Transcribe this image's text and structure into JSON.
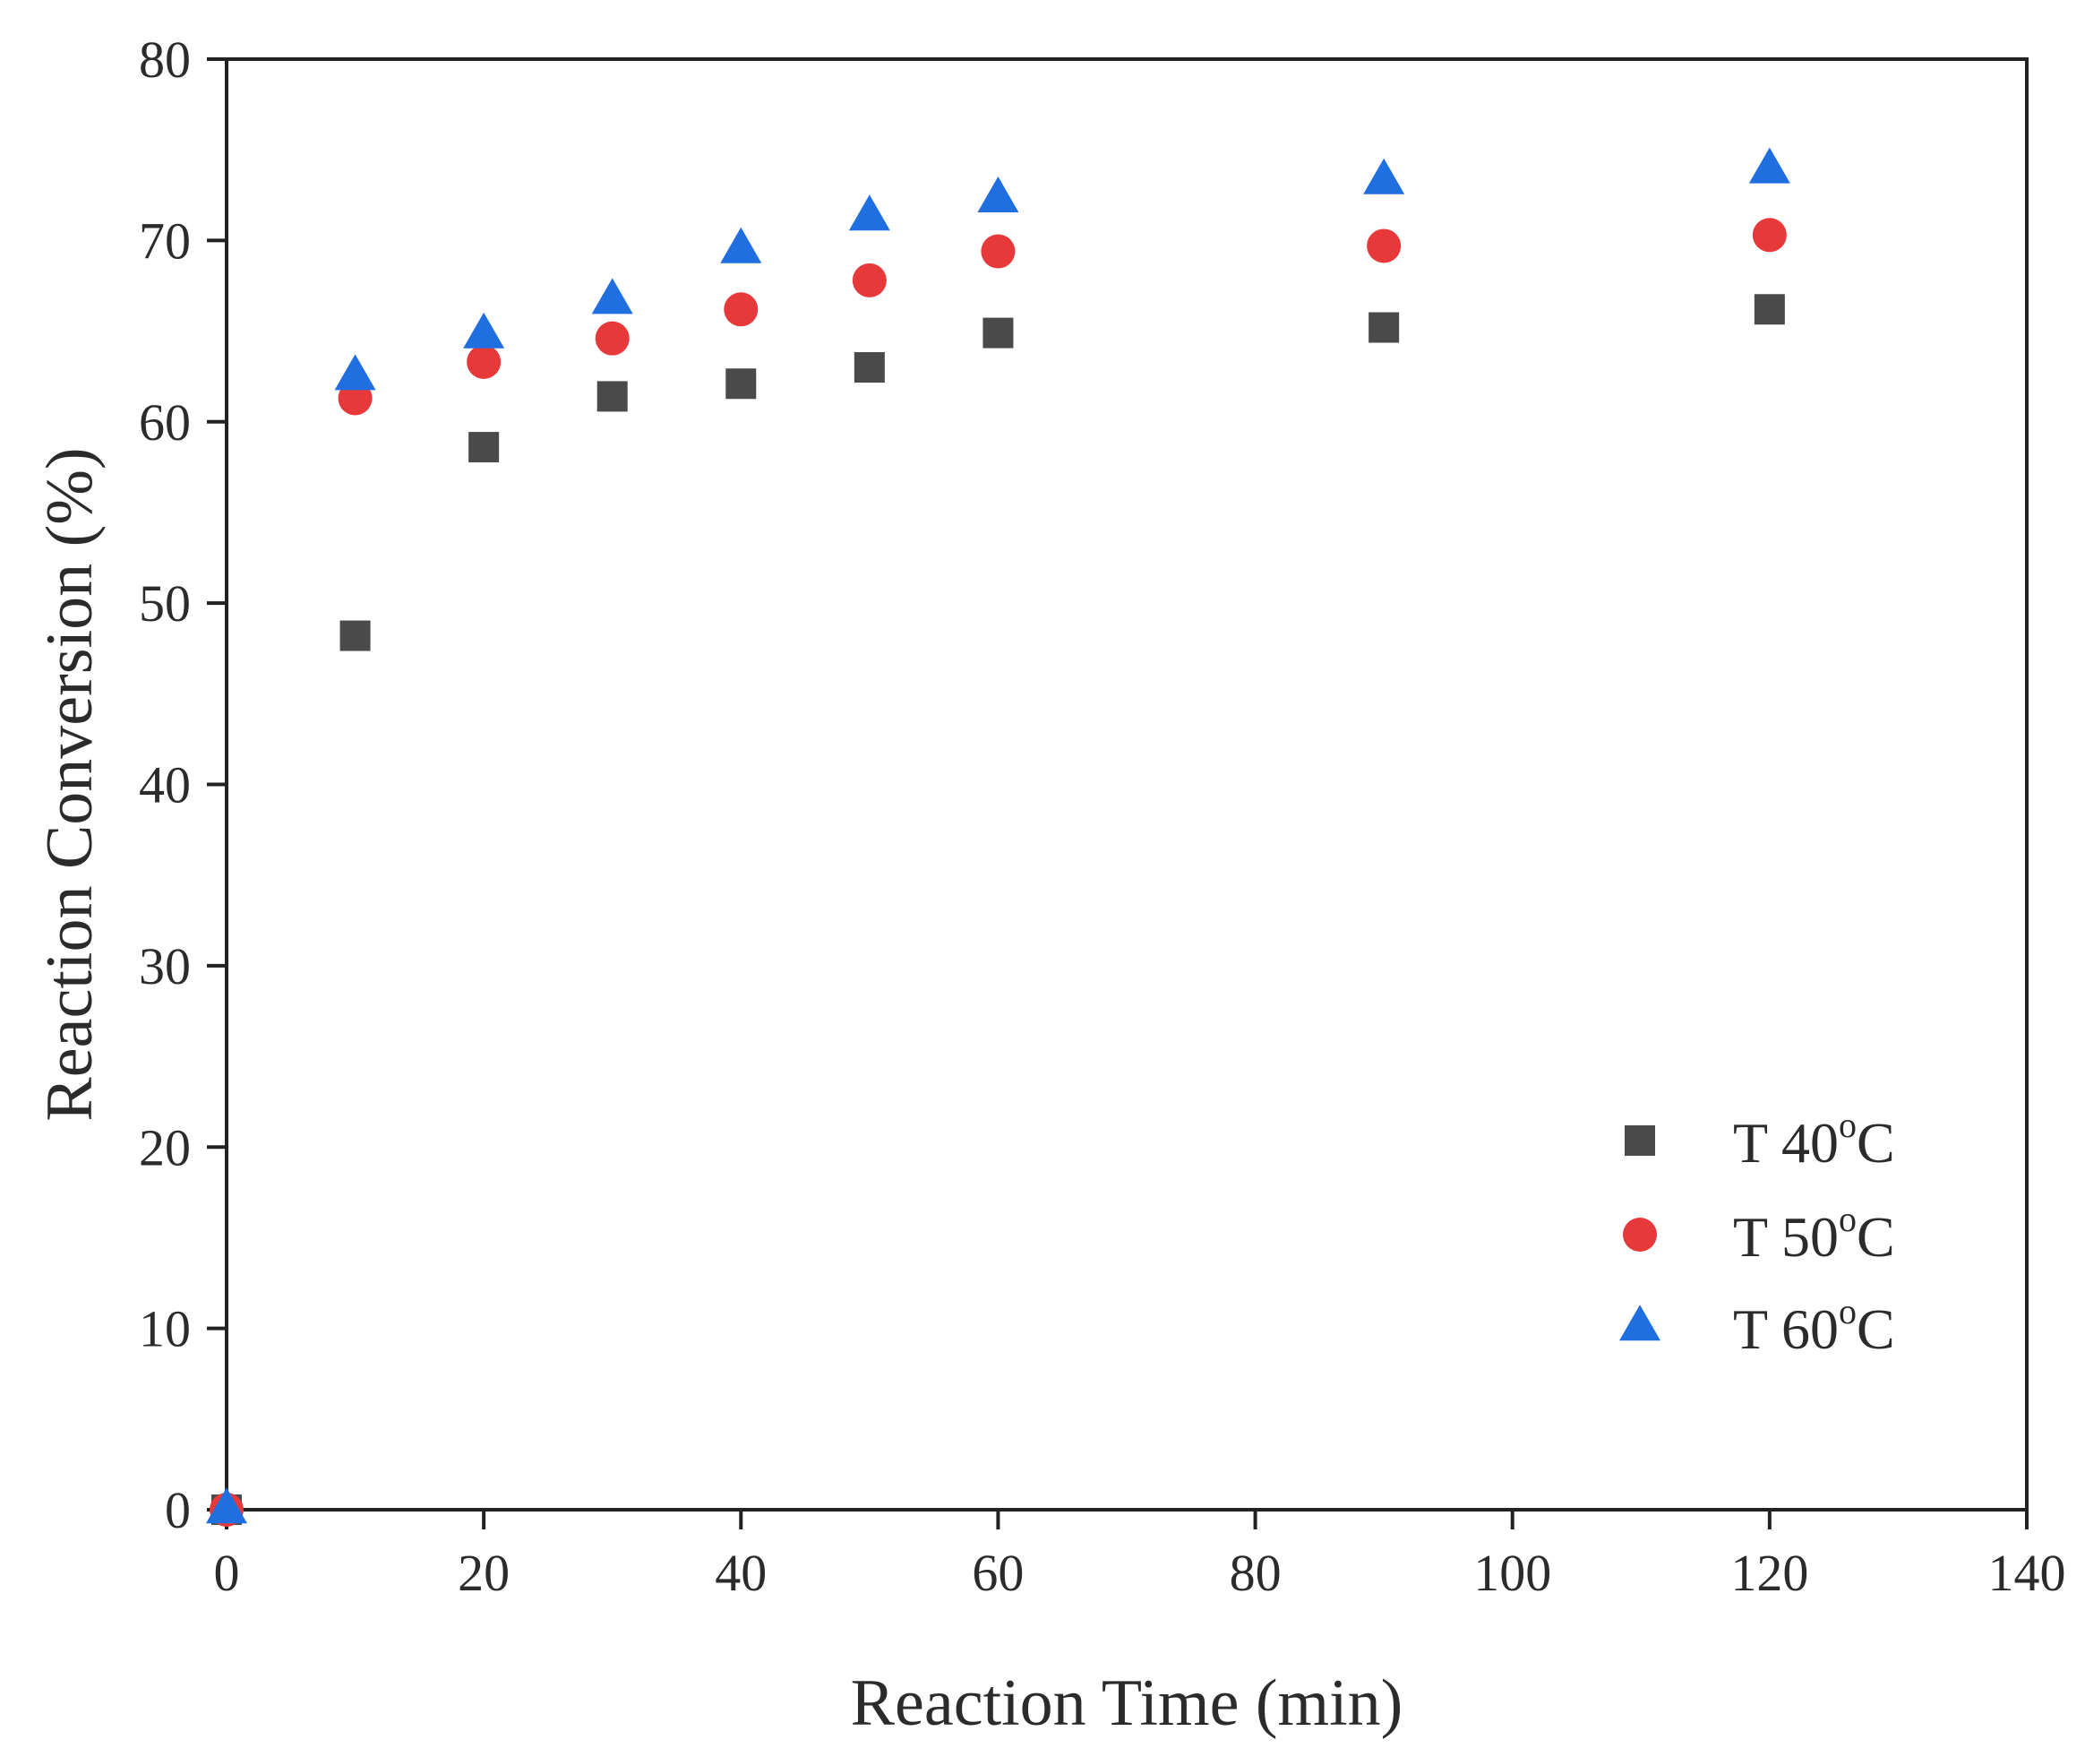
{
  "chart_data": {
    "type": "scatter",
    "title": "",
    "xlabel": "Reaction Time (min)",
    "ylabel": "Reaction Conversion (%)",
    "xlim": [
      0,
      140
    ],
    "ylim": [
      0,
      80
    ],
    "xticks": [
      0,
      20,
      40,
      60,
      80,
      100,
      120,
      140
    ],
    "yticks": [
      0,
      10,
      20,
      30,
      40,
      50,
      60,
      70,
      80
    ],
    "xtick_labels": [
      "0",
      "20",
      "40",
      "60",
      "80",
      "100",
      "120",
      "140"
    ],
    "ytick_labels": [
      "0",
      "10",
      "20",
      "30",
      "40",
      "50",
      "60",
      "70",
      "80"
    ],
    "grid": false,
    "legend_position": "bottom-right",
    "series": [
      {
        "name": "T 40oC",
        "label_main": "T 40",
        "label_sup": "o",
        "label_end": "C",
        "marker": "square",
        "color": "#4a4a4a",
        "x": [
          0,
          10,
          20,
          30,
          40,
          50,
          60,
          90,
          120
        ],
        "y": [
          0,
          48.2,
          58.6,
          61.4,
          62.1,
          63.0,
          64.9,
          65.2,
          66.2
        ]
      },
      {
        "name": "T 50oC",
        "label_main": "T 50",
        "label_sup": "o",
        "label_end": "C",
        "marker": "circle",
        "color": "#e8393a",
        "x": [
          0,
          10,
          20,
          30,
          40,
          50,
          60,
          90,
          120
        ],
        "y": [
          0,
          61.3,
          63.3,
          64.6,
          66.2,
          67.8,
          69.4,
          69.7,
          70.3
        ]
      },
      {
        "name": "T 60oC",
        "label_main": "T 60",
        "label_sup": "o",
        "label_end": "C",
        "marker": "triangle",
        "color": "#1f6fe0",
        "x": [
          0,
          10,
          20,
          30,
          40,
          50,
          60,
          90,
          120
        ],
        "y": [
          0,
          62.5,
          64.8,
          66.7,
          69.5,
          71.3,
          72.3,
          73.3,
          73.9
        ]
      }
    ]
  }
}
